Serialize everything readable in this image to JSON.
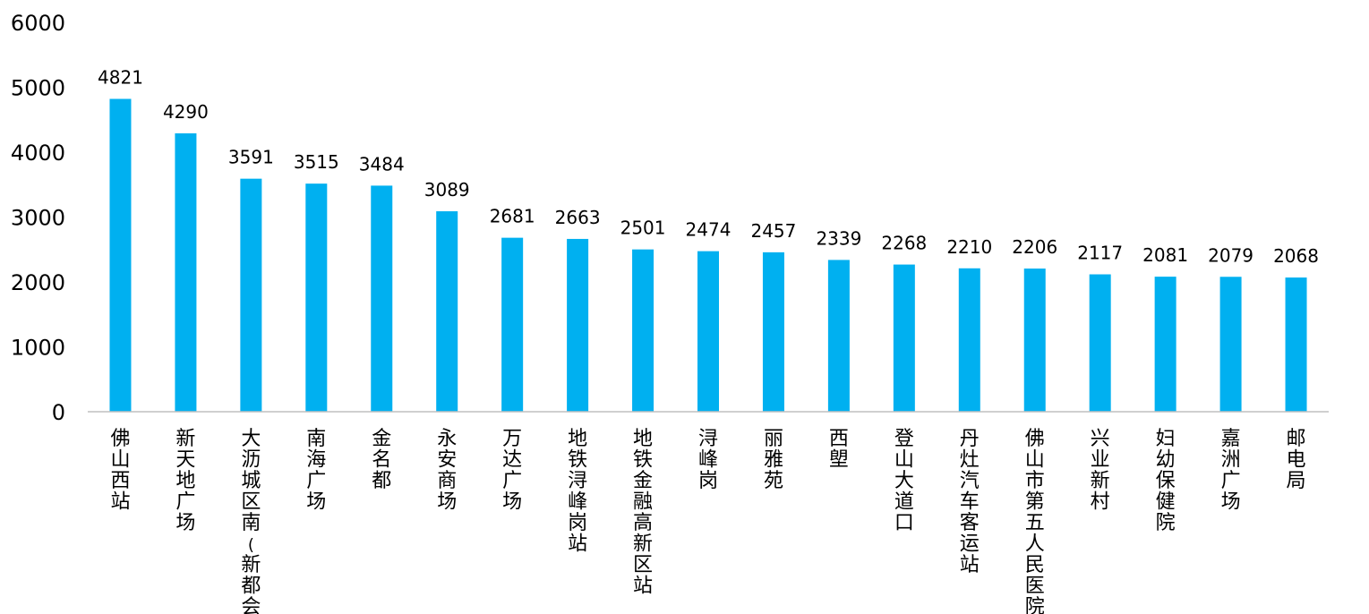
{
  "chart_data": {
    "type": "bar",
    "title": "",
    "xlabel": "",
    "ylabel": "",
    "ylim": [
      0,
      6000
    ],
    "yticks": [
      0,
      1000,
      2000,
      3000,
      4000,
      5000,
      6000
    ],
    "grid": false,
    "legend": "none",
    "bar_color": "#00B0F0",
    "data_labels": true,
    "categories": [
      "佛山西站",
      "新天地广场",
      "大沥城区南(新都会)",
      "南海广场",
      "金名都",
      "永安商场",
      "万达广场",
      "地铁浔峰岗站",
      "地铁金融高新区站",
      "浔峰岗",
      "丽雅苑",
      "西塱",
      "登山大道口",
      "丹灶汽车客运站",
      "佛山市第五人民医院",
      "兴业新村",
      "妇幼保健院",
      "嘉洲广场",
      "邮电局"
    ],
    "values": [
      4821,
      4290,
      3591,
      3515,
      3484,
      3089,
      2681,
      2663,
      2501,
      2474,
      2457,
      2339,
      2268,
      2210,
      2206,
      2117,
      2081,
      2079,
      2068
    ]
  }
}
